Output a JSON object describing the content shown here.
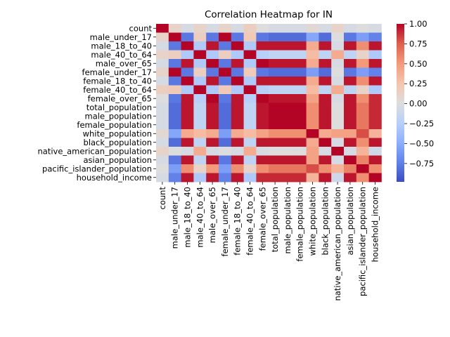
{
  "chart_data": {
    "type": "heatmap",
    "title": "Correlation Heatmap for IN",
    "xlabel": "",
    "ylabel": "",
    "labels": [
      "count",
      "male_under_17",
      "male_18_to_40",
      "male_40_to_64",
      "male_over_65",
      "female_under_17",
      "female_18_to_40",
      "female_40_to_64",
      "female_over_65",
      "total_population",
      "male_population",
      "female_population",
      "white_population",
      "black_population",
      "native_american_population",
      "asian_population",
      "pacific_islander_population",
      "household_income"
    ],
    "matrix": [
      [
        1.0,
        0.1,
        -0.05,
        0.1,
        -0.05,
        0.1,
        -0.05,
        0.15,
        0.0,
        -0.05,
        -0.05,
        -0.05,
        0.05,
        -0.05,
        0.1,
        -0.05,
        0.0,
        -0.05
      ],
      [
        0.1,
        1.0,
        -0.8,
        0.15,
        -0.8,
        1.0,
        -0.8,
        0.2,
        -0.8,
        -0.85,
        -0.85,
        -0.85,
        -0.55,
        -0.85,
        0.0,
        -0.8,
        -0.6,
        -0.75
      ],
      [
        -0.05,
        -0.8,
        1.0,
        -0.3,
        0.95,
        -0.8,
        1.0,
        -0.3,
        0.95,
        0.95,
        0.95,
        0.95,
        0.4,
        0.95,
        -0.05,
        0.95,
        0.55,
        0.95
      ],
      [
        0.1,
        0.15,
        -0.3,
        1.0,
        -0.3,
        0.15,
        -0.3,
        1.0,
        -0.25,
        -0.2,
        -0.2,
        -0.2,
        0.3,
        -0.2,
        0.4,
        -0.2,
        0.1,
        -0.3
      ],
      [
        -0.05,
        -0.8,
        0.95,
        -0.3,
        1.0,
        -0.8,
        0.95,
        -0.3,
        1.0,
        0.95,
        0.95,
        0.95,
        0.4,
        0.95,
        -0.05,
        0.95,
        0.5,
        0.95
      ],
      [
        0.1,
        1.0,
        -0.8,
        0.15,
        -0.8,
        1.0,
        -0.8,
        0.2,
        -0.8,
        -0.85,
        -0.85,
        -0.85,
        -0.6,
        -0.85,
        0.0,
        -0.8,
        -0.6,
        -0.75
      ],
      [
        -0.05,
        -0.8,
        1.0,
        -0.3,
        0.95,
        -0.8,
        1.0,
        -0.3,
        0.95,
        0.95,
        0.95,
        0.95,
        0.4,
        0.95,
        -0.05,
        0.95,
        0.55,
        0.95
      ],
      [
        0.15,
        0.2,
        -0.3,
        1.0,
        -0.3,
        0.2,
        -0.3,
        1.0,
        -0.25,
        -0.2,
        -0.2,
        -0.2,
        0.3,
        -0.2,
        0.4,
        -0.2,
        0.1,
        -0.3
      ],
      [
        0.0,
        -0.8,
        0.95,
        -0.25,
        1.0,
        -0.8,
        0.95,
        -0.25,
        1.0,
        0.95,
        0.95,
        0.95,
        0.45,
        0.95,
        -0.05,
        0.95,
        0.55,
        0.9
      ],
      [
        -0.05,
        -0.85,
        0.95,
        -0.2,
        0.95,
        -0.85,
        0.95,
        -0.2,
        0.95,
        1.0,
        1.0,
        1.0,
        0.55,
        0.95,
        0.0,
        0.95,
        0.65,
        0.9
      ],
      [
        -0.05,
        -0.85,
        0.95,
        -0.2,
        0.95,
        -0.85,
        0.95,
        -0.2,
        0.95,
        1.0,
        1.0,
        1.0,
        0.55,
        0.95,
        0.0,
        0.95,
        0.65,
        0.9
      ],
      [
        -0.05,
        -0.85,
        0.95,
        -0.2,
        0.95,
        -0.85,
        0.95,
        -0.2,
        0.95,
        1.0,
        1.0,
        1.0,
        0.55,
        0.95,
        0.0,
        0.95,
        0.65,
        0.9
      ],
      [
        0.05,
        -0.55,
        0.4,
        0.3,
        0.4,
        -0.6,
        0.4,
        0.3,
        0.45,
        0.55,
        0.55,
        0.55,
        1.0,
        0.4,
        0.45,
        0.45,
        0.8,
        0.35
      ],
      [
        -0.05,
        -0.85,
        0.95,
        -0.2,
        0.95,
        -0.85,
        0.95,
        -0.2,
        0.95,
        0.95,
        0.95,
        0.95,
        0.4,
        1.0,
        -0.05,
        0.95,
        0.55,
        0.95
      ],
      [
        0.1,
        0.0,
        -0.05,
        0.4,
        -0.05,
        0.0,
        -0.05,
        0.4,
        -0.05,
        0.0,
        0.0,
        0.0,
        0.45,
        -0.05,
        1.0,
        -0.05,
        0.35,
        -0.1
      ],
      [
        -0.05,
        -0.8,
        0.95,
        -0.2,
        0.95,
        -0.8,
        0.95,
        -0.2,
        0.95,
        0.95,
        0.95,
        0.95,
        0.45,
        0.95,
        -0.05,
        1.0,
        0.6,
        0.95
      ],
      [
        0.0,
        -0.6,
        0.55,
        0.1,
        0.5,
        -0.6,
        0.55,
        0.1,
        0.55,
        0.65,
        0.65,
        0.65,
        0.8,
        0.55,
        0.35,
        0.6,
        1.0,
        0.55
      ],
      [
        -0.05,
        -0.75,
        0.95,
        -0.3,
        0.95,
        -0.75,
        0.95,
        -0.3,
        0.9,
        0.9,
        0.9,
        0.9,
        0.35,
        0.95,
        -0.1,
        0.95,
        0.55,
        1.0
      ]
    ],
    "vmin": -1.0,
    "vmax": 1.0,
    "colormap": "coolwarm",
    "colorbar_ticks": [
      "1.00",
      "0.75",
      "0.50",
      "0.25",
      "0.00",
      "−0.25",
      "−0.50",
      "−0.75"
    ],
    "colorbar_tick_values": [
      1.0,
      0.75,
      0.5,
      0.25,
      0.0,
      -0.25,
      -0.5,
      -0.75
    ],
    "grid": false
  }
}
